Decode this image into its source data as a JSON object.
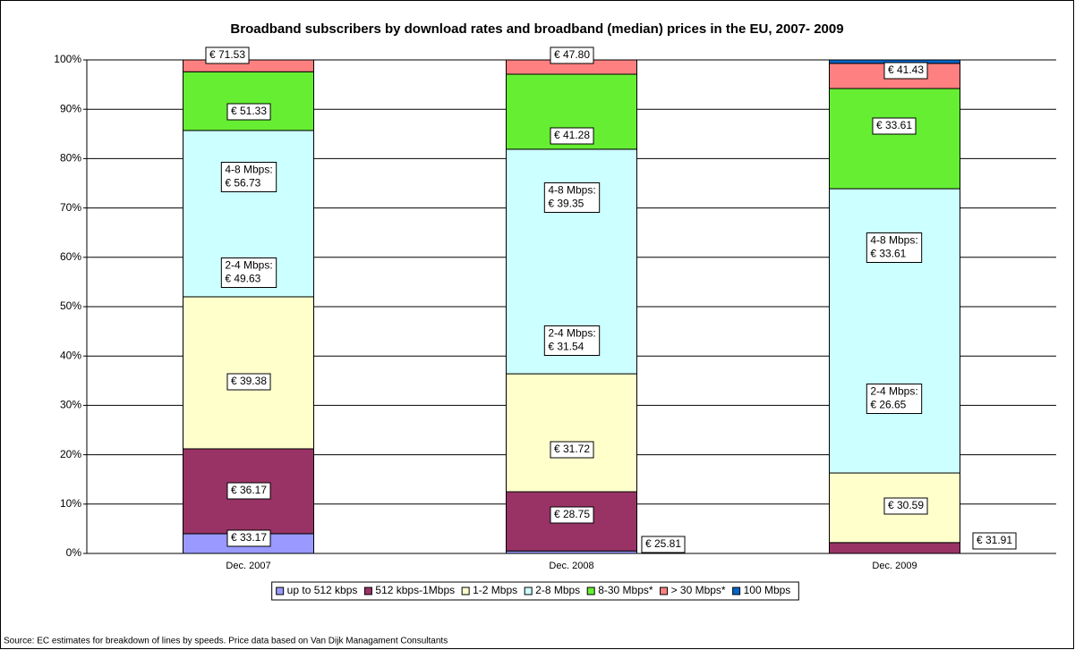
{
  "chart_data": {
    "type": "stacked_bar",
    "title": "Broadband subscribers by download rates and broadband (median) prices in the EU, 2007- 2009",
    "source": "Source: EC estimates for breakdown of lines by speeds. Price data based on Van Dijk Managament Consultants",
    "categories": [
      "Dec. 2007",
      "Dec. 2008",
      "Dec. 2009"
    ],
    "series": [
      {
        "name": "up to 512 kbps",
        "color": "#9999ff",
        "values": [
          4.0,
          0.5,
          0
        ]
      },
      {
        "name": "512 kbps-1Mbps",
        "color": "#993366",
        "values": [
          17.2,
          12.0,
          2.2
        ]
      },
      {
        "name": "1-2 Mbps",
        "color": "#ffffcc",
        "values": [
          30.8,
          23.9,
          14.1
        ]
      },
      {
        "name": "2-8 Mbps",
        "color": "#ccffff",
        "values": [
          33.7,
          45.5,
          57.6
        ]
      },
      {
        "name": "8-30 Mbps*",
        "color": "#66ee33",
        "values": [
          11.9,
          15.2,
          20.3
        ]
      },
      {
        "name": "> 30 Mbps*",
        "color": "#ff8080",
        "values": [
          2.4,
          2.9,
          5.1
        ]
      },
      {
        "name": "100 Mbps",
        "color": "#0066cc",
        "values": [
          0,
          0,
          0.7
        ]
      }
    ],
    "ylim": [
      0,
      100
    ],
    "yticks": [
      {
        "value": 0,
        "label": "0%"
      },
      {
        "value": 10,
        "label": "10%"
      },
      {
        "value": 20,
        "label": "20%"
      },
      {
        "value": 30,
        "label": "30%"
      },
      {
        "value": 40,
        "label": "40%"
      },
      {
        "value": 50,
        "label": "50%"
      },
      {
        "value": 60,
        "label": "60%"
      },
      {
        "value": 70,
        "label": "70%"
      },
      {
        "value": 80,
        "label": "80%"
      },
      {
        "value": 90,
        "label": "90%"
      },
      {
        "value": 100,
        "label": "100%"
      }
    ],
    "grid": true,
    "legend": "bottom",
    "annotations": [
      {
        "lines": [
          "€ 71.53"
        ]
      },
      {
        "lines": [
          "€ 51.33"
        ]
      },
      {
        "lines": [
          "4-8 Mbps:",
          "€ 56.73"
        ]
      },
      {
        "lines": [
          "2-4 Mbps:",
          "€ 49.63"
        ]
      },
      {
        "lines": [
          "€ 39.38"
        ]
      },
      {
        "lines": [
          "€ 36.17"
        ]
      },
      {
        "lines": [
          "€ 33.17"
        ]
      },
      {
        "lines": [
          "€ 47.80"
        ]
      },
      {
        "lines": [
          "€ 41.28"
        ]
      },
      {
        "lines": [
          "4-8 Mbps:",
          "€ 39.35"
        ]
      },
      {
        "lines": [
          "2-4 Mbps:",
          "€ 31.54"
        ]
      },
      {
        "lines": [
          "€ 31.72"
        ]
      },
      {
        "lines": [
          "€ 28.75"
        ]
      },
      {
        "lines": [
          "€ 25.81"
        ]
      },
      {
        "lines": [
          "€ 41.43"
        ]
      },
      {
        "lines": [
          "€ 33.61"
        ]
      },
      {
        "lines": [
          "4-8 Mbps:",
          "€ 33.61"
        ]
      },
      {
        "lines": [
          "2-4 Mbps:",
          "€ 26.65"
        ]
      },
      {
        "lines": [
          "€ 30.59"
        ]
      },
      {
        "lines": [
          "€ 31.91"
        ]
      }
    ]
  }
}
